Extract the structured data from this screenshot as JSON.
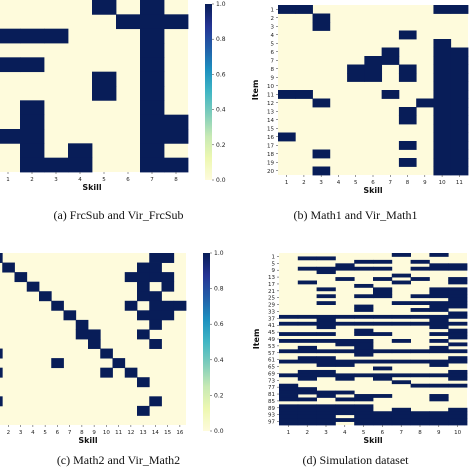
{
  "colors": {
    "low": "#fefbdc",
    "high": "#081d58",
    "cmap": "YlGnBu"
  },
  "chart_data": [
    {
      "type": "heatmap",
      "id": "a",
      "caption": "(a) FrcSub and Vir_FrcSub",
      "xlabel": "Skill",
      "ylabel": "",
      "x_ticks": [
        "1",
        "2",
        "3",
        "4",
        "5",
        "6",
        "7",
        "8"
      ],
      "y_ticks": [],
      "colorbar": {
        "range": [
          0,
          1
        ],
        "ticks": [
          "0.0",
          "0.2",
          "0.4",
          "0.6",
          "0.8",
          "1.0"
        ]
      },
      "matrix": [
        [
          0,
          0,
          0,
          0,
          1,
          0,
          1,
          0
        ],
        [
          0,
          0,
          0,
          0,
          0,
          1,
          1,
          1
        ],
        [
          1,
          1,
          1,
          0,
          0,
          0,
          1,
          0
        ],
        [
          0,
          0,
          0,
          0,
          0,
          0,
          1,
          0
        ],
        [
          1,
          1,
          0,
          0,
          0,
          0,
          1,
          0
        ],
        [
          0,
          0,
          0,
          0,
          1,
          0,
          1,
          0
        ],
        [
          0,
          0,
          0,
          0,
          1,
          0,
          1,
          0
        ],
        [
          0,
          1,
          0,
          0,
          0,
          0,
          1,
          0
        ],
        [
          0,
          1,
          0,
          0,
          0,
          0,
          1,
          1
        ],
        [
          1,
          1,
          0,
          0,
          0,
          0,
          1,
          1
        ],
        [
          0,
          1,
          0,
          1,
          0,
          0,
          1,
          0
        ],
        [
          0,
          1,
          1,
          1,
          0,
          0,
          1,
          1
        ]
      ]
    },
    {
      "type": "heatmap",
      "id": "b",
      "caption": "(b) Math1 and Vir_Math1",
      "xlabel": "Skill",
      "ylabel": "Item",
      "x_ticks": [
        "1",
        "2",
        "3",
        "4",
        "5",
        "6",
        "7",
        "8",
        "9",
        "10",
        "11"
      ],
      "y_ticks": [
        "1",
        "2",
        "3",
        "4",
        "5",
        "6",
        "7",
        "8",
        "9",
        "10",
        "11",
        "12",
        "13",
        "14",
        "15",
        "16",
        "17",
        "18",
        "19",
        "20"
      ],
      "matrix": [
        [
          1,
          1,
          0,
          0,
          0,
          0,
          0,
          0,
          0,
          1,
          1
        ],
        [
          0,
          0,
          1,
          0,
          0,
          0,
          0,
          0,
          0,
          0,
          0
        ],
        [
          0,
          0,
          1,
          0,
          0,
          0,
          0,
          0,
          0,
          0,
          0
        ],
        [
          0,
          0,
          0,
          0,
          0,
          0,
          0,
          1,
          0,
          0,
          0
        ],
        [
          0,
          0,
          0,
          0,
          0,
          0,
          0,
          0,
          0,
          1,
          0
        ],
        [
          0,
          0,
          0,
          0,
          0,
          0,
          1,
          0,
          0,
          1,
          1
        ],
        [
          0,
          0,
          0,
          0,
          0,
          1,
          1,
          0,
          0,
          1,
          1
        ],
        [
          0,
          0,
          0,
          0,
          1,
          1,
          0,
          1,
          0,
          1,
          1
        ],
        [
          0,
          0,
          0,
          0,
          1,
          1,
          0,
          1,
          0,
          1,
          1
        ],
        [
          0,
          0,
          0,
          0,
          0,
          0,
          0,
          0,
          0,
          1,
          1
        ],
        [
          1,
          1,
          0,
          0,
          0,
          0,
          1,
          0,
          0,
          1,
          1
        ],
        [
          0,
          0,
          1,
          0,
          0,
          0,
          0,
          0,
          1,
          1,
          1
        ],
        [
          0,
          0,
          0,
          0,
          0,
          0,
          0,
          1,
          0,
          1,
          1
        ],
        [
          0,
          0,
          0,
          0,
          0,
          0,
          0,
          1,
          0,
          1,
          1
        ],
        [
          0,
          0,
          0,
          0,
          0,
          0,
          0,
          0,
          0,
          1,
          1
        ],
        [
          1,
          0,
          0,
          0,
          0,
          0,
          0,
          0,
          0,
          1,
          1
        ],
        [
          0,
          0,
          0,
          0,
          0,
          0,
          0,
          1,
          0,
          1,
          1
        ],
        [
          0,
          0,
          1,
          0,
          0,
          0,
          0,
          0,
          0,
          1,
          1
        ],
        [
          0,
          0,
          0,
          0,
          0,
          0,
          0,
          1,
          0,
          1,
          1
        ],
        [
          0,
          0,
          1,
          0,
          0,
          0,
          0,
          0,
          0,
          1,
          1
        ]
      ]
    },
    {
      "type": "heatmap",
      "id": "c",
      "caption": "(c) Math2 and Vir_Math2",
      "xlabel": "Skill",
      "ylabel": "",
      "x_ticks": [
        "1",
        "2",
        "3",
        "4",
        "5",
        "6",
        "7",
        "8",
        "9",
        "10",
        "11",
        "12",
        "13",
        "14",
        "15",
        "16"
      ],
      "y_ticks": [],
      "colorbar": {
        "range": [
          0,
          1
        ],
        "ticks": [
          "0.0",
          "0.2",
          "0.4",
          "0.6",
          "0.8",
          "1.0"
        ]
      },
      "matrix": [
        [
          1,
          0,
          0,
          0,
          0,
          0,
          0,
          0,
          0,
          0,
          0,
          0,
          0,
          1,
          1,
          0
        ],
        [
          0,
          1,
          0,
          0,
          0,
          0,
          0,
          0,
          0,
          0,
          0,
          0,
          1,
          1,
          0,
          0
        ],
        [
          0,
          0,
          1,
          0,
          0,
          0,
          0,
          0,
          0,
          0,
          0,
          1,
          1,
          1,
          1,
          0
        ],
        [
          0,
          0,
          0,
          1,
          0,
          0,
          0,
          0,
          0,
          0,
          0,
          0,
          1,
          0,
          1,
          0
        ],
        [
          0,
          0,
          0,
          0,
          1,
          0,
          0,
          0,
          0,
          0,
          0,
          0,
          1,
          1,
          0,
          0
        ],
        [
          0,
          0,
          0,
          0,
          0,
          1,
          0,
          0,
          0,
          0,
          0,
          1,
          0,
          1,
          1,
          1
        ],
        [
          0,
          0,
          0,
          0,
          0,
          0,
          1,
          0,
          0,
          0,
          0,
          0,
          1,
          1,
          1,
          0
        ],
        [
          0,
          0,
          0,
          0,
          0,
          0,
          0,
          1,
          0,
          0,
          0,
          0,
          0,
          1,
          0,
          0
        ],
        [
          0,
          0,
          0,
          0,
          0,
          0,
          0,
          1,
          1,
          0,
          0,
          0,
          1,
          0,
          0,
          0
        ],
        [
          0,
          0,
          0,
          0,
          0,
          0,
          0,
          0,
          1,
          0,
          0,
          0,
          0,
          1,
          0,
          0
        ],
        [
          1,
          0,
          0,
          0,
          0,
          0,
          0,
          0,
          0,
          1,
          0,
          0,
          0,
          0,
          0,
          0
        ],
        [
          0,
          0,
          0,
          0,
          0,
          1,
          0,
          0,
          0,
          0,
          1,
          0,
          0,
          0,
          0,
          0
        ],
        [
          1,
          0,
          0,
          0,
          0,
          0,
          0,
          0,
          0,
          1,
          0,
          1,
          0,
          0,
          0,
          0
        ],
        [
          0,
          0,
          0,
          0,
          0,
          0,
          0,
          0,
          0,
          0,
          0,
          0,
          1,
          0,
          0,
          0
        ],
        [
          0,
          0,
          0,
          0,
          0,
          0,
          0,
          0,
          0,
          0,
          0,
          0,
          0,
          0,
          0,
          0
        ],
        [
          1,
          0,
          0,
          0,
          0,
          0,
          0,
          0,
          0,
          0,
          0,
          0,
          0,
          1,
          0,
          0
        ],
        [
          0,
          0,
          0,
          0,
          0,
          0,
          0,
          0,
          0,
          0,
          0,
          0,
          1,
          0,
          0,
          0
        ],
        [
          0,
          0,
          0,
          0,
          0,
          0,
          0,
          0,
          0,
          0,
          0,
          0,
          0,
          0,
          0,
          0
        ]
      ]
    },
    {
      "type": "heatmap",
      "id": "d",
      "caption": "(d) Simulation dataset",
      "xlabel": "Skill",
      "ylabel": "Item",
      "x_ticks": [
        "1",
        "2",
        "3",
        "4",
        "5",
        "6",
        "7",
        "8",
        "9",
        "10"
      ],
      "y_ticks": [
        "1",
        "5",
        "9",
        "13",
        "17",
        "21",
        "25",
        "29",
        "33",
        "37",
        "41",
        "45",
        "49",
        "53",
        "57",
        "61",
        "65",
        "69",
        "73",
        "77",
        "81",
        "85",
        "89",
        "93",
        "97"
      ],
      "matrix": [
        [
          0,
          0,
          0,
          0,
          0,
          0,
          1,
          0,
          1,
          0
        ],
        [
          0,
          1,
          1,
          0,
          0,
          0,
          0,
          0,
          0,
          0
        ],
        [
          0,
          0,
          0,
          0,
          1,
          1,
          0,
          1,
          0,
          0
        ],
        [
          0,
          0,
          0,
          1,
          0,
          0,
          0,
          0,
          1,
          1
        ],
        [
          0,
          1,
          1,
          1,
          1,
          1,
          0,
          1,
          1,
          1
        ],
        [
          0,
          0,
          1,
          0,
          0,
          0,
          0,
          0,
          0,
          0
        ],
        [
          0,
          0,
          0,
          0,
          0,
          0,
          1,
          0,
          0,
          0
        ],
        [
          0,
          0,
          0,
          1,
          0,
          1,
          0,
          1,
          0,
          1
        ],
        [
          0,
          1,
          0,
          0,
          0,
          0,
          1,
          0,
          0,
          1
        ],
        [
          0,
          0,
          0,
          0,
          1,
          0,
          0,
          0,
          0,
          0
        ],
        [
          0,
          0,
          1,
          0,
          0,
          1,
          0,
          0,
          1,
          1
        ],
        [
          0,
          0,
          0,
          0,
          0,
          1,
          0,
          0,
          1,
          1
        ],
        [
          0,
          0,
          1,
          0,
          1,
          1,
          0,
          1,
          1,
          1
        ],
        [
          0,
          0,
          0,
          0,
          0,
          0,
          0,
          0,
          0,
          1
        ],
        [
          0,
          0,
          1,
          0,
          0,
          0,
          1,
          1,
          1,
          1
        ],
        [
          0,
          0,
          0,
          0,
          1,
          0,
          0,
          0,
          1,
          1
        ],
        [
          0,
          0,
          0,
          0,
          1,
          0,
          0,
          1,
          1,
          0
        ],
        [
          0,
          0,
          0,
          0,
          0,
          0,
          0,
          0,
          0,
          1
        ],
        [
          1,
          1,
          1,
          1,
          1,
          1,
          1,
          1,
          1,
          1
        ],
        [
          0,
          0,
          1,
          0,
          0,
          0,
          0,
          0,
          1,
          0
        ],
        [
          1,
          1,
          1,
          1,
          1,
          1,
          1,
          1,
          1,
          1
        ],
        [
          0,
          0,
          1,
          0,
          0,
          0,
          0,
          0,
          1,
          0
        ],
        [
          0,
          0,
          0,
          0,
          1,
          0,
          0,
          0,
          0,
          1
        ],
        [
          1,
          1,
          1,
          0,
          1,
          1,
          0,
          0,
          1,
          1
        ],
        [
          0,
          0,
          0,
          0,
          0,
          0,
          0,
          0,
          0,
          1
        ],
        [
          1,
          1,
          1,
          1,
          1,
          0,
          1,
          0,
          1,
          0
        ],
        [
          0,
          0,
          0,
          1,
          1,
          0,
          0,
          0,
          0,
          1
        ],
        [
          0,
          1,
          0,
          0,
          1,
          0,
          0,
          0,
          1,
          0
        ],
        [
          1,
          1,
          1,
          1,
          1,
          1,
          1,
          1,
          1,
          1
        ],
        [
          0,
          0,
          0,
          0,
          1,
          0,
          0,
          0,
          0,
          0
        ],
        [
          0,
          1,
          1,
          0,
          0,
          0,
          0,
          0,
          0,
          1
        ],
        [
          1,
          1,
          1,
          1,
          1,
          1,
          1,
          1,
          1,
          1
        ],
        [
          0,
          0,
          1,
          1,
          0,
          0,
          0,
          0,
          1,
          0
        ],
        [
          0,
          0,
          0,
          0,
          0,
          1,
          0,
          0,
          0,
          0
        ],
        [
          0,
          1,
          1,
          0,
          0,
          0,
          0,
          0,
          0,
          1
        ],
        [
          1,
          1,
          1,
          1,
          1,
          1,
          1,
          1,
          1,
          1
        ],
        [
          0,
          1,
          0,
          1,
          0,
          1,
          0,
          0,
          0,
          1
        ],
        [
          0,
          0,
          0,
          0,
          0,
          0,
          1,
          0,
          0,
          0
        ],
        [
          1,
          0,
          0,
          0,
          0,
          0,
          0,
          1,
          1,
          1
        ],
        [
          1,
          1,
          0,
          0,
          0,
          0,
          0,
          0,
          0,
          0
        ],
        [
          1,
          1,
          1,
          1,
          0,
          0,
          0,
          0,
          0,
          0
        ],
        [
          1,
          0,
          1,
          0,
          1,
          1,
          0,
          0,
          1,
          0
        ],
        [
          1,
          1,
          0,
          1,
          1,
          0,
          0,
          0,
          1,
          0
        ],
        [
          0,
          0,
          0,
          0,
          0,
          0,
          0,
          0,
          0,
          0
        ],
        [
          1,
          1,
          1,
          1,
          1,
          0,
          0,
          0,
          0,
          0
        ],
        [
          1,
          1,
          1,
          1,
          1,
          0,
          1,
          0,
          0,
          1
        ],
        [
          1,
          1,
          1,
          1,
          1,
          1,
          1,
          1,
          1,
          1
        ],
        [
          1,
          1,
          1,
          0,
          1,
          1,
          1,
          1,
          1,
          1
        ],
        [
          1,
          1,
          1,
          1,
          1,
          1,
          1,
          1,
          1,
          1
        ],
        [
          1,
          1,
          1,
          0,
          1,
          1,
          1,
          1,
          1,
          1
        ]
      ]
    }
  ]
}
